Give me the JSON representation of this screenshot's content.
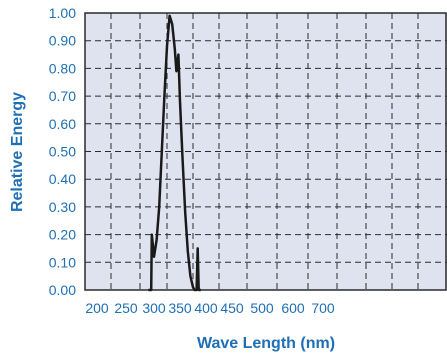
{
  "chart_data": {
    "type": "line",
    "title": "",
    "xlabel": "Wave Length (nm)",
    "ylabel": "Relative Energy",
    "x_ticks": [
      "200",
      "250",
      "300",
      "350",
      "400",
      "450",
      "500",
      "600",
      "700"
    ],
    "y_ticks": [
      "0.00",
      "0.10",
      "0.20",
      "0.30",
      "0.40",
      "0.50",
      "0.60",
      "0.70",
      "0.80",
      "0.90",
      "1.00"
    ],
    "ylim": [
      0,
      1
    ],
    "grid": true,
    "colors": {
      "plot_background": "#dfe3f0",
      "grid": "#2b2b2b",
      "line": "#1a1a1a",
      "text": "#1f6fb5"
    },
    "series": [
      {
        "points": [
          [
            290,
            0.0
          ],
          [
            295,
            0.0
          ],
          [
            296,
            0.2
          ],
          [
            300,
            0.12
          ],
          [
            305,
            0.18
          ],
          [
            310,
            0.3
          ],
          [
            315,
            0.5
          ],
          [
            320,
            0.7
          ],
          [
            325,
            0.88
          ],
          [
            330,
            0.99
          ],
          [
            335,
            0.96
          ],
          [
            340,
            0.87
          ],
          [
            343,
            0.79
          ],
          [
            347,
            0.85
          ],
          [
            350,
            0.68
          ],
          [
            355,
            0.47
          ],
          [
            360,
            0.28
          ],
          [
            365,
            0.14
          ],
          [
            370,
            0.05
          ],
          [
            375,
            0.01
          ],
          [
            378,
            0.0
          ],
          [
            382,
            0.0
          ],
          [
            384,
            0.15
          ],
          [
            386,
            0.0
          ],
          [
            390,
            0.0
          ]
        ]
      }
    ]
  }
}
